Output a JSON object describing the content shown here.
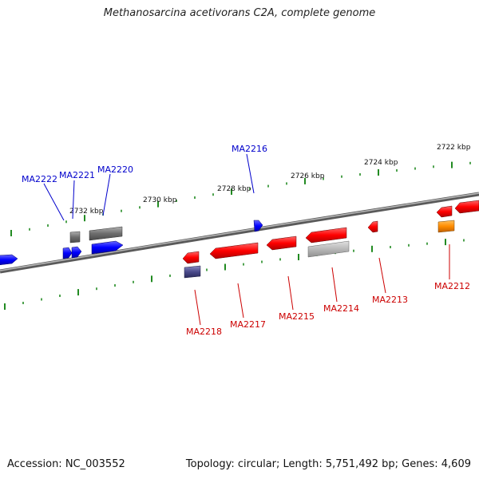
{
  "title": "Methanosarcina acetivorans C2A, complete genome",
  "footer": {
    "accession": "Accession: NC_003552",
    "info": "Topology: circular; Length: 5,751,492 bp; Genes: 4,609"
  },
  "colors": {
    "forward_gene": "#0000ff",
    "reverse_gene": "#ff0000",
    "backbone": "#808080",
    "tick": "#228b22",
    "feature_gray": "#808080",
    "feature_orange": "#ff8c00",
    "feature_purple": "#4b4b8c"
  },
  "scale_labels": [
    "2732 kbp",
    "2730 kbp",
    "2728 kbp",
    "2726 kbp",
    "2724 kbp",
    "2722 kbp"
  ],
  "forward_genes": [
    "MA2222",
    "MA2221",
    "MA2220",
    "MA2216"
  ],
  "reverse_genes": [
    "MA2218",
    "MA2217",
    "MA2215",
    "MA2214",
    "MA2213",
    "MA2212"
  ]
}
